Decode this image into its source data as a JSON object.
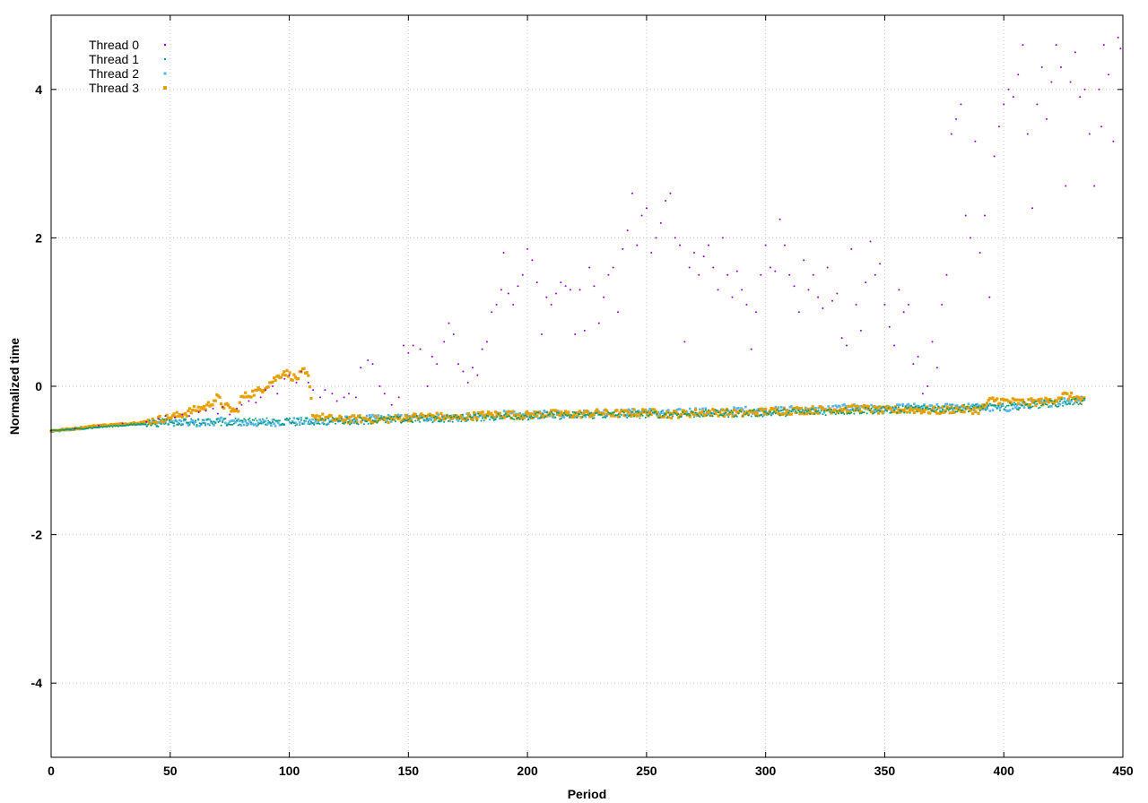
{
  "chart_data": {
    "type": "scatter",
    "title": "",
    "xlabel": "Period",
    "ylabel": "Normalized time",
    "xlim": [
      0,
      450
    ],
    "ylim": [
      -5,
      5
    ],
    "x_ticks": [
      0,
      50,
      100,
      150,
      200,
      250,
      300,
      350,
      400,
      450
    ],
    "y_ticks": [
      -4,
      -2,
      0,
      2,
      4
    ],
    "grid": true,
    "legend_position": "top-left",
    "series": [
      {
        "name": "Thread 0",
        "color": "#9400d3",
        "marker": "dot",
        "points": [
          [
            0,
            -0.6
          ],
          [
            10,
            -0.57
          ],
          [
            20,
            -0.53
          ],
          [
            30,
            -0.5
          ],
          [
            40,
            -0.48
          ],
          [
            45,
            -0.44
          ],
          [
            48,
            -0.4
          ],
          [
            52,
            -0.42
          ],
          [
            55,
            -0.38
          ],
          [
            58,
            -0.4
          ],
          [
            62,
            -0.35
          ],
          [
            65,
            -0.33
          ],
          [
            68,
            -0.3
          ],
          [
            70,
            -0.37
          ],
          [
            72,
            -0.28
          ],
          [
            75,
            -0.38
          ],
          [
            78,
            -0.3
          ],
          [
            80,
            -0.25
          ],
          [
            83,
            -0.2
          ],
          [
            86,
            -0.22
          ],
          [
            88,
            -0.15
          ],
          [
            90,
            -0.05
          ],
          [
            93,
            0.0
          ],
          [
            95,
            -0.1
          ],
          [
            98,
            0.1
          ],
          [
            100,
            0.15
          ],
          [
            103,
            0.05
          ],
          [
            105,
            0.2
          ],
          [
            108,
            0.05
          ],
          [
            110,
            -0.05
          ],
          [
            113,
            -0.15
          ],
          [
            115,
            -0.05
          ],
          [
            118,
            -0.1
          ],
          [
            120,
            -0.2
          ],
          [
            123,
            -0.15
          ],
          [
            125,
            -0.1
          ],
          [
            128,
            -0.15
          ],
          [
            130,
            0.25
          ],
          [
            133,
            0.35
          ],
          [
            135,
            0.3
          ],
          [
            138,
            0.0
          ],
          [
            140,
            -0.1
          ],
          [
            143,
            -0.25
          ],
          [
            146,
            -0.15
          ],
          [
            148,
            0.55
          ],
          [
            150,
            0.45
          ],
          [
            152,
            0.55
          ],
          [
            155,
            0.5
          ],
          [
            158,
            0.0
          ],
          [
            160,
            0.4
          ],
          [
            162,
            0.3
          ],
          [
            165,
            0.6
          ],
          [
            167,
            0.85
          ],
          [
            169,
            0.7
          ],
          [
            171,
            0.3
          ],
          [
            173,
            0.2
          ],
          [
            175,
            0.05
          ],
          [
            177,
            0.25
          ],
          [
            179,
            0.15
          ],
          [
            181,
            0.5
          ],
          [
            183,
            0.6
          ],
          [
            185,
            1.0
          ],
          [
            187,
            1.1
          ],
          [
            189,
            1.3
          ],
          [
            190,
            1.8
          ],
          [
            192,
            1.25
          ],
          [
            194,
            1.1
          ],
          [
            196,
            1.35
          ],
          [
            198,
            1.5
          ],
          [
            200,
            1.85
          ],
          [
            202,
            1.7
          ],
          [
            204,
            1.4
          ],
          [
            206,
            0.7
          ],
          [
            208,
            1.2
          ],
          [
            210,
            1.1
          ],
          [
            212,
            1.25
          ],
          [
            214,
            1.4
          ],
          [
            216,
            1.35
          ],
          [
            218,
            1.3
          ],
          [
            220,
            0.7
          ],
          [
            222,
            1.3
          ],
          [
            224,
            0.75
          ],
          [
            226,
            1.6
          ],
          [
            228,
            1.35
          ],
          [
            230,
            0.85
          ],
          [
            232,
            1.2
          ],
          [
            234,
            1.5
          ],
          [
            236,
            1.6
          ],
          [
            238,
            1.0
          ],
          [
            240,
            1.85
          ],
          [
            242,
            2.1
          ],
          [
            244,
            2.6
          ],
          [
            246,
            1.9
          ],
          [
            248,
            2.3
          ],
          [
            250,
            2.4
          ],
          [
            252,
            1.8
          ],
          [
            254,
            2.0
          ],
          [
            256,
            2.2
          ],
          [
            258,
            2.5
          ],
          [
            260,
            2.6
          ],
          [
            262,
            2.0
          ],
          [
            264,
            1.9
          ],
          [
            266,
            0.6
          ],
          [
            268,
            1.6
          ],
          [
            270,
            1.8
          ],
          [
            272,
            1.5
          ],
          [
            274,
            1.75
          ],
          [
            276,
            1.9
          ],
          [
            278,
            1.6
          ],
          [
            280,
            1.3
          ],
          [
            282,
            2.0
          ],
          [
            284,
            1.5
          ],
          [
            286,
            1.2
          ],
          [
            288,
            1.55
          ],
          [
            290,
            1.3
          ],
          [
            292,
            1.1
          ],
          [
            294,
            0.5
          ],
          [
            296,
            1.0
          ],
          [
            298,
            1.5
          ],
          [
            300,
            1.9
          ],
          [
            302,
            1.6
          ],
          [
            304,
            1.55
          ],
          [
            306,
            2.25
          ],
          [
            308,
            1.9
          ],
          [
            310,
            1.5
          ],
          [
            312,
            1.35
          ],
          [
            314,
            1.0
          ],
          [
            316,
            1.7
          ],
          [
            318,
            1.3
          ],
          [
            320,
            1.5
          ],
          [
            322,
            1.2
          ],
          [
            324,
            1.05
          ],
          [
            326,
            1.6
          ],
          [
            328,
            1.15
          ],
          [
            330,
            1.25
          ],
          [
            332,
            0.65
          ],
          [
            334,
            0.55
          ],
          [
            336,
            1.85
          ],
          [
            338,
            1.1
          ],
          [
            340,
            0.75
          ],
          [
            342,
            1.4
          ],
          [
            344,
            1.95
          ],
          [
            346,
            1.5
          ],
          [
            348,
            1.65
          ],
          [
            350,
            1.1
          ],
          [
            352,
            0.8
          ],
          [
            354,
            0.55
          ],
          [
            356,
            1.3
          ],
          [
            358,
            1.0
          ],
          [
            360,
            1.1
          ],
          [
            362,
            0.3
          ],
          [
            364,
            0.4
          ],
          [
            366,
            -0.1
          ],
          [
            368,
            0.0
          ],
          [
            370,
            0.6
          ],
          [
            372,
            0.25
          ],
          [
            374,
            1.1
          ],
          [
            376,
            1.5
          ],
          [
            378,
            3.4
          ],
          [
            380,
            3.6
          ],
          [
            382,
            3.8
          ],
          [
            384,
            2.3
          ],
          [
            386,
            2.0
          ],
          [
            388,
            3.3
          ],
          [
            390,
            1.8
          ],
          [
            392,
            2.3
          ],
          [
            394,
            1.2
          ],
          [
            396,
            3.1
          ],
          [
            398,
            3.5
          ],
          [
            400,
            3.8
          ],
          [
            402,
            4.0
          ],
          [
            404,
            3.9
          ],
          [
            406,
            4.2
          ],
          [
            408,
            4.6
          ],
          [
            410,
            3.4
          ],
          [
            412,
            2.4
          ],
          [
            414,
            3.8
          ],
          [
            416,
            4.3
          ],
          [
            418,
            3.6
          ],
          [
            420,
            4.1
          ],
          [
            422,
            4.6
          ],
          [
            424,
            4.3
          ],
          [
            426,
            2.7
          ],
          [
            428,
            4.1
          ],
          [
            430,
            4.5
          ],
          [
            432,
            3.9
          ],
          [
            434,
            4.0
          ],
          [
            436,
            3.4
          ],
          [
            438,
            2.7
          ],
          [
            440,
            4.0
          ],
          [
            441,
            3.5
          ],
          [
            442,
            4.6
          ],
          [
            444,
            4.2
          ],
          [
            446,
            3.3
          ],
          [
            448,
            4.7
          ],
          [
            449,
            4.55
          ]
        ]
      },
      {
        "name": "Thread 1",
        "color": "#009e73",
        "marker": "dot",
        "points": [
          [
            0,
            -0.6
          ],
          [
            50,
            -0.48
          ],
          [
            100,
            -0.48
          ],
          [
            150,
            -0.45
          ],
          [
            200,
            -0.4
          ],
          [
            250,
            -0.38
          ],
          [
            300,
            -0.36
          ],
          [
            350,
            -0.32
          ],
          [
            400,
            -0.28
          ],
          [
            434,
            -0.2
          ]
        ]
      },
      {
        "name": "Thread 2",
        "color": "#56b4e9",
        "marker": "small-square",
        "points": [
          [
            0,
            -0.61
          ],
          [
            10,
            -0.58
          ],
          [
            20,
            -0.54
          ],
          [
            30,
            -0.52
          ],
          [
            40,
            -0.5
          ],
          [
            50,
            -0.48
          ],
          [
            60,
            -0.5
          ],
          [
            70,
            -0.47
          ],
          [
            80,
            -0.49
          ],
          [
            90,
            -0.5
          ],
          [
            100,
            -0.47
          ],
          [
            110,
            -0.48
          ],
          [
            120,
            -0.46
          ],
          [
            130,
            -0.44
          ],
          [
            140,
            -0.43
          ],
          [
            150,
            -0.43
          ],
          [
            160,
            -0.42
          ],
          [
            170,
            -0.43
          ],
          [
            180,
            -0.41
          ],
          [
            190,
            -0.38
          ],
          [
            200,
            -0.4
          ],
          [
            210,
            -0.37
          ],
          [
            220,
            -0.38
          ],
          [
            230,
            -0.35
          ],
          [
            240,
            -0.36
          ],
          [
            250,
            -0.34
          ],
          [
            260,
            -0.37
          ],
          [
            270,
            -0.33
          ],
          [
            280,
            -0.36
          ],
          [
            290,
            -0.32
          ],
          [
            300,
            -0.34
          ],
          [
            310,
            -0.31
          ],
          [
            320,
            -0.33
          ],
          [
            330,
            -0.3
          ],
          [
            340,
            -0.28
          ],
          [
            350,
            -0.32
          ],
          [
            360,
            -0.28
          ],
          [
            370,
            -0.3
          ],
          [
            380,
            -0.27
          ],
          [
            390,
            -0.29
          ],
          [
            400,
            -0.3
          ],
          [
            410,
            -0.25
          ],
          [
            420,
            -0.22
          ],
          [
            430,
            -0.18
          ],
          [
            434,
            -0.15
          ]
        ]
      },
      {
        "name": "Thread 3",
        "color": "#e69f00",
        "marker": "square",
        "points": [
          [
            0,
            -0.6
          ],
          [
            10,
            -0.57
          ],
          [
            20,
            -0.53
          ],
          [
            30,
            -0.51
          ],
          [
            40,
            -0.48
          ],
          [
            50,
            -0.42
          ],
          [
            55,
            -0.38
          ],
          [
            60,
            -0.32
          ],
          [
            65,
            -0.28
          ],
          [
            68,
            -0.2
          ],
          [
            70,
            -0.15
          ],
          [
            72,
            -0.25
          ],
          [
            75,
            -0.3
          ],
          [
            78,
            -0.35
          ],
          [
            80,
            -0.15
          ],
          [
            84,
            -0.1
          ],
          [
            88,
            -0.05
          ],
          [
            92,
            0.05
          ],
          [
            95,
            0.12
          ],
          [
            98,
            0.2
          ],
          [
            100,
            0.15
          ],
          [
            103,
            0.1
          ],
          [
            106,
            0.2
          ],
          [
            108,
            0.12
          ],
          [
            110,
            -0.4
          ],
          [
            120,
            -0.45
          ],
          [
            130,
            -0.44
          ],
          [
            140,
            -0.45
          ],
          [
            150,
            -0.42
          ],
          [
            160,
            -0.4
          ],
          [
            170,
            -0.43
          ],
          [
            180,
            -0.39
          ],
          [
            190,
            -0.38
          ],
          [
            200,
            -0.39
          ],
          [
            210,
            -0.37
          ],
          [
            220,
            -0.38
          ],
          [
            230,
            -0.36
          ],
          [
            240,
            -0.37
          ],
          [
            250,
            -0.35
          ],
          [
            260,
            -0.38
          ],
          [
            270,
            -0.36
          ],
          [
            280,
            -0.35
          ],
          [
            290,
            -0.37
          ],
          [
            300,
            -0.34
          ],
          [
            310,
            -0.33
          ],
          [
            320,
            -0.32
          ],
          [
            330,
            -0.31
          ],
          [
            340,
            -0.3
          ],
          [
            350,
            -0.33
          ],
          [
            360,
            -0.31
          ],
          [
            370,
            -0.33
          ],
          [
            380,
            -0.31
          ],
          [
            390,
            -0.32
          ],
          [
            395,
            -0.18
          ],
          [
            400,
            -0.2
          ],
          [
            410,
            -0.22
          ],
          [
            420,
            -0.2
          ],
          [
            425,
            -0.12
          ],
          [
            430,
            -0.15
          ],
          [
            434,
            -0.2
          ]
        ]
      }
    ]
  }
}
